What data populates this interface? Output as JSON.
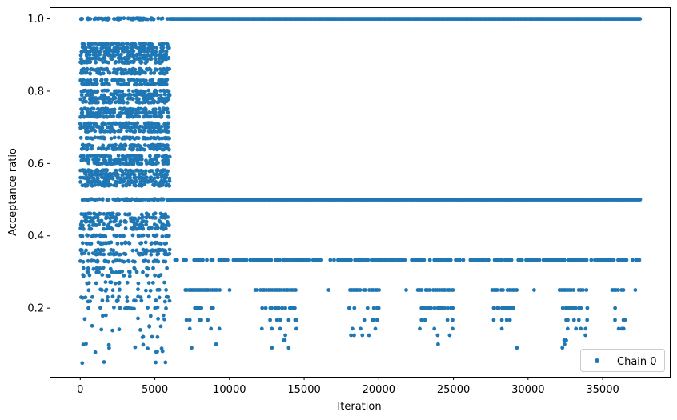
{
  "chart_data": {
    "type": "scatter",
    "title": "",
    "xlabel": "Iteration",
    "ylabel": "Acceptance ratio",
    "xlim": [
      -2000,
      39500
    ],
    "ylim": [
      0.01,
      1.03
    ],
    "xticks": [
      0,
      5000,
      10000,
      15000,
      20000,
      25000,
      30000,
      35000
    ],
    "xtick_labels": [
      "0",
      "5000",
      "10000",
      "15000",
      "20000",
      "25000",
      "30000",
      "35000"
    ],
    "yticks": [
      0.2,
      0.4,
      0.6,
      0.8,
      1.0
    ],
    "ytick_labels": [
      "0.2",
      "0.4",
      "0.6",
      "0.8",
      "1.0"
    ],
    "grid": false,
    "legend": {
      "position": "lower-right",
      "entries": [
        "Chain 0"
      ]
    },
    "color": "#1f77b4",
    "series": [
      {
        "name": "Chain 0",
        "marker": "circle",
        "phases": [
          {
            "x_range": [
              0,
              6000
            ],
            "description_levels": [
              1.0,
              0.93,
              0.92,
              0.91,
              0.9,
              0.89,
              0.88,
              0.86,
              0.85,
              0.83,
              0.82,
              0.8,
              0.79,
              0.78,
              0.77,
              0.75,
              0.74,
              0.73,
              0.71,
              0.7,
              0.69,
              0.67,
              0.65,
              0.64,
              0.62,
              0.61,
              0.6,
              0.58,
              0.57,
              0.56,
              0.55,
              0.54,
              0.5,
              0.46,
              0.45,
              0.44,
              0.43,
              0.42,
              0.4,
              0.38,
              0.36,
              0.35,
              0.33,
              0.31,
              0.3,
              0.29,
              0.27,
              0.25,
              0.23,
              0.22,
              0.2,
              0.18,
              0.17,
              0.15,
              0.14,
              0.12,
              0.1,
              0.09,
              0.08,
              0.05
            ]
          },
          {
            "x_range": [
              6000,
              37500
            ],
            "description_levels": [
              1.0,
              0.5,
              0.333,
              0.25,
              0.2,
              0.167,
              0.143,
              0.125,
              0.111,
              0.1,
              0.09
            ]
          }
        ]
      }
    ]
  }
}
